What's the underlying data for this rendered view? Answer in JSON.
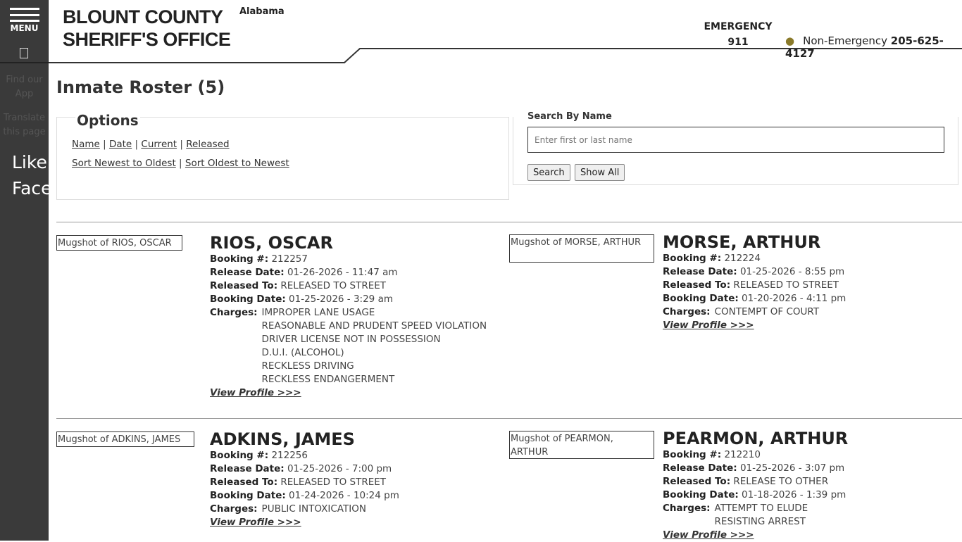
{
  "sidebar": {
    "menu_label": "MENU",
    "find_app": "Find our App",
    "translate": "Translate this page",
    "social": "Like us on Facebook"
  },
  "header": {
    "brand_line1": "BLOUNT COUNTY",
    "brand_line2": "SHERIFF'S OFFICE",
    "state": "Alabama",
    "emergency_label": "EMERGENCY",
    "emergency_number": "911",
    "nonemergency_label": "Non-Emergency",
    "nonemergency_number": "205-625-4127"
  },
  "page": {
    "title": "Inmate Roster (5)"
  },
  "options": {
    "heading": "Options",
    "filters": [
      "Name",
      "Date",
      "Current",
      "Released"
    ],
    "sorts": [
      "Sort Newest to Oldest",
      "Sort Oldest to Newest"
    ]
  },
  "search": {
    "label": "Search By Name",
    "placeholder": "Enter first or last name",
    "search_button": "Search",
    "show_all_button": "Show All"
  },
  "labels": {
    "booking": "Booking #:",
    "release_date": "Release Date:",
    "released_to": "Released To:",
    "booking_date": "Booking Date:",
    "charges": "Charges:",
    "view_profile": "View Profile >>>"
  },
  "inmates": [
    {
      "name": "RIOS, OSCAR",
      "mug_alt": "Mugshot of RIOS, OSCAR",
      "booking": "212257",
      "release_date": "01-26-2026 - 11:47 am",
      "released_to": "RELEASED TO STREET",
      "booking_date": "01-25-2026 - 3:29 am",
      "charges": [
        "IMPROPER LANE USAGE",
        "REASONABLE AND PRUDENT SPEED VIOLATION",
        "DRIVER LICENSE NOT IN POSSESSION",
        "D.U.I. (ALCOHOL)",
        "RECKLESS DRIVING",
        "RECKLESS ENDANGERMENT"
      ]
    },
    {
      "name": "MORSE, ARTHUR",
      "mug_alt": "Mugshot of MORSE, ARTHUR",
      "booking": "212224",
      "release_date": "01-25-2026 - 8:55 pm",
      "released_to": "RELEASED TO STREET",
      "booking_date": "01-20-2026 - 4:11 pm",
      "charges": [
        "CONTEMPT OF COURT"
      ]
    },
    {
      "name": "ADKINS, JAMES",
      "mug_alt": "Mugshot of ADKINS, JAMES",
      "booking": "212256",
      "release_date": "01-25-2026 - 7:00 pm",
      "released_to": "RELEASED TO STREET",
      "booking_date": "01-24-2026 - 10:24 pm",
      "charges": [
        "PUBLIC INTOXICATION"
      ]
    },
    {
      "name": "PEARMON, ARTHUR",
      "mug_alt": "Mugshot of PEARMON, ARTHUR",
      "booking": "212210",
      "release_date": "01-25-2026 - 3:07 pm",
      "released_to": "RELEASE TO OTHER",
      "booking_date": "01-18-2026 - 1:39 pm",
      "charges": [
        "ATTEMPT TO ELUDE",
        "RESISTING ARREST"
      ]
    }
  ]
}
